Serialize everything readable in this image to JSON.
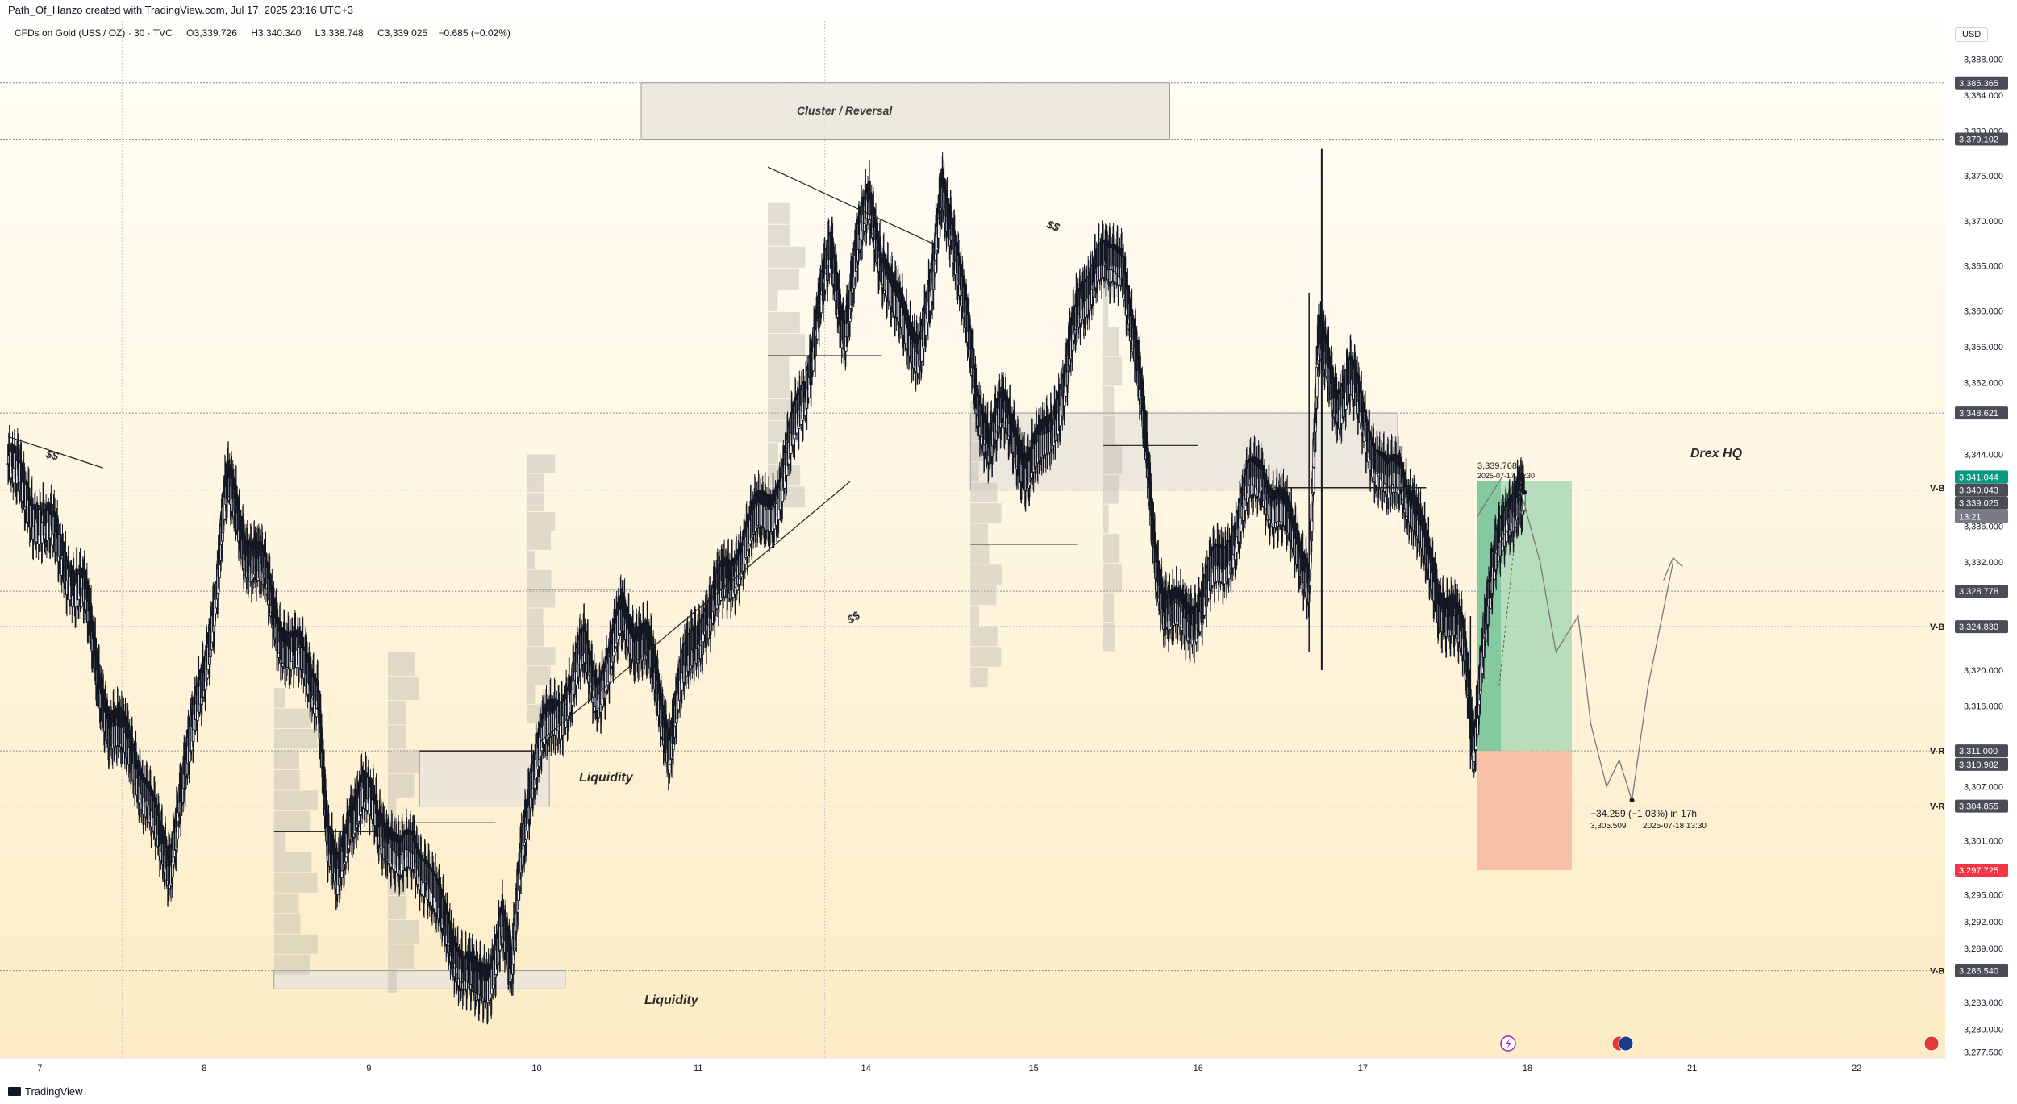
{
  "header": {
    "creator_line": "Path_Of_Hanzo created with TradingView.com, Jul 17, 2025 23:16 UTC+3"
  },
  "legend": {
    "symbol": "CFDs on Gold (US$ / OZ) · 30 · TVC",
    "open_label": "O",
    "open": "3,339.726",
    "high_label": "H",
    "high": "3,340.340",
    "low_label": "L",
    "low": "3,338.748",
    "close_label": "C",
    "close": "3,339.025",
    "change": "−0.685 (−0.02%)"
  },
  "price_axis": {
    "currency": "USD",
    "ticks": [
      "3,388.000",
      "3,384.000",
      "3,380.000",
      "3,375.000",
      "3,370.000",
      "3,365.000",
      "3,360.000",
      "3,356.000",
      "3,352.000",
      "3,344.000",
      "3,336.000",
      "3,332.000",
      "3,320.000",
      "3,316.000",
      "3,307.000",
      "3,301.000",
      "3,295.000",
      "3,292.000",
      "3,289.000",
      "3,283.000",
      "3,280.000",
      "3,277.500"
    ],
    "tick_values": [
      3388,
      3384,
      3380,
      3375,
      3370,
      3365,
      3360,
      3356,
      3352,
      3344,
      3336,
      3332,
      3320,
      3316,
      3307,
      3301,
      3295,
      3292,
      3289,
      3283,
      3280,
      3277.5
    ],
    "tags": [
      {
        "label": "3,385.365",
        "value": 3385.365,
        "color": "#4a4d56"
      },
      {
        "label": "3,379.102",
        "value": 3379.102,
        "color": "#4a4d56"
      },
      {
        "label": "3,348.621",
        "value": 3348.621,
        "color": "#4a4d56"
      },
      {
        "label": "3,341.044",
        "value": 3341.5,
        "color": "#089981"
      },
      {
        "label": "3,340.043",
        "value": 3340.043,
        "color": "#4a4d56"
      },
      {
        "label": "3,339.025",
        "value": 3338.6,
        "color": "#4a4d56"
      },
      {
        "label": "13:21",
        "value": 3337.1,
        "color": "#787b86"
      },
      {
        "label": "3,328.778",
        "value": 3328.778,
        "color": "#4a4d56"
      },
      {
        "label": "3,324.830",
        "value": 3324.83,
        "color": "#4a4d56"
      },
      {
        "label": "3,311.000",
        "value": 3311.0,
        "color": "#4a4d56"
      },
      {
        "label": "3,310.982",
        "value": 3309.5,
        "color": "#4a4d56"
      },
      {
        "label": "3,304.855",
        "value": 3304.855,
        "color": "#4a4d56"
      },
      {
        "label": "3,297.725",
        "value": 3297.725,
        "color": "#f23645"
      },
      {
        "label": "3,286.540",
        "value": 3286.54,
        "color": "#4a4d56"
      }
    ],
    "vlabels": [
      {
        "text": "V-B",
        "value": 3340.3
      },
      {
        "text": "V-B",
        "value": 3324.83
      },
      {
        "text": "V-R",
        "value": 3311.0
      },
      {
        "text": "V-R",
        "value": 3304.855
      },
      {
        "text": "V-B",
        "value": 3286.54
      }
    ]
  },
  "time_axis": {
    "labels": [
      "7",
      "8",
      "9",
      "10",
      "11",
      "14",
      "15",
      "16",
      "17",
      "18",
      "21",
      "22"
    ],
    "positions": [
      0.5,
      3.1,
      5.7,
      8.35,
      10.9,
      13.55,
      16.2,
      18.8,
      21.4,
      24.0,
      26.6,
      29.2
    ]
  },
  "annotations": {
    "cluster_zone": "Cluster / Reversal",
    "drex_zone": "Drex HQ",
    "liquidity_mid": "Liquidity",
    "liquidity_low": "Liquidity",
    "dollars_left": "$$",
    "dollars_top": "$$",
    "dollars_trend": "$$",
    "entry_price": "3,339.768",
    "entry_time": "2025-07-17 20:30",
    "target_change": "−34.259 (−1.03%) in 17h",
    "target_price": "3,305.509",
    "target_time": "2025-07-18  13:30"
  },
  "footer": {
    "brand": "TradingView"
  },
  "colors": {
    "bg_top": "#fffdf6",
    "bg_bottom": "#fdeec8",
    "up": "#131722",
    "profit": "#9fd6b0",
    "profit_dark": "#5cb88a",
    "loss": "#f7b9a0",
    "zone": "#e8e4dc"
  },
  "chart_data": {
    "type": "candlestick",
    "title": "CFDs on Gold (US$ / OZ) · 30 · TVC",
    "x_unit": "trading days (index, 7 Jul = 0.5)",
    "y_range": [
      3276,
      3391
    ],
    "path_points": [
      [
        0.0,
        3343
      ],
      [
        0.3,
        3339
      ],
      [
        0.6,
        3336
      ],
      [
        0.9,
        3332
      ],
      [
        1.2,
        3328
      ],
      [
        1.4,
        3320
      ],
      [
        1.6,
        3314
      ],
      [
        1.8,
        3312
      ],
      [
        2.0,
        3310
      ],
      [
        2.2,
        3306
      ],
      [
        2.4,
        3300
      ],
      [
        2.55,
        3298
      ],
      [
        2.7,
        3306
      ],
      [
        2.9,
        3312
      ],
      [
        3.1,
        3320
      ],
      [
        3.3,
        3330
      ],
      [
        3.45,
        3340
      ],
      [
        3.6,
        3338
      ],
      [
        3.75,
        3334
      ],
      [
        3.9,
        3332
      ],
      [
        4.05,
        3330
      ],
      [
        4.25,
        3325
      ],
      [
        4.45,
        3322
      ],
      [
        4.7,
        3320
      ],
      [
        4.9,
        3318
      ],
      [
        5.05,
        3300
      ],
      [
        5.2,
        3296
      ],
      [
        5.4,
        3304
      ],
      [
        5.6,
        3306
      ],
      [
        5.85,
        3303
      ],
      [
        6.0,
        3302
      ],
      [
        6.2,
        3298
      ],
      [
        6.4,
        3300
      ],
      [
        6.6,
        3298
      ],
      [
        6.8,
        3293
      ],
      [
        7.0,
        3290
      ],
      [
        7.2,
        3287
      ],
      [
        7.4,
        3284
      ],
      [
        7.6,
        3286
      ],
      [
        7.8,
        3292
      ],
      [
        7.95,
        3285
      ],
      [
        8.1,
        3300
      ],
      [
        8.25,
        3308
      ],
      [
        8.45,
        3312
      ],
      [
        8.65,
        3315
      ],
      [
        8.9,
        3318
      ],
      [
        9.1,
        3322
      ],
      [
        9.3,
        3318
      ],
      [
        9.5,
        3320
      ],
      [
        9.7,
        3326
      ],
      [
        9.9,
        3324
      ],
      [
        10.1,
        3322
      ],
      [
        10.3,
        3316
      ],
      [
        10.45,
        3312
      ],
      [
        10.6,
        3318
      ],
      [
        10.8,
        3322
      ],
      [
        11.0,
        3326
      ],
      [
        11.2,
        3328
      ],
      [
        11.4,
        3330
      ],
      [
        11.6,
        3334
      ],
      [
        11.8,
        3336
      ],
      [
        12.0,
        3338
      ],
      [
        12.2,
        3340
      ],
      [
        12.4,
        3346
      ],
      [
        12.6,
        3352
      ],
      [
        12.8,
        3360
      ],
      [
        13.0,
        3366
      ],
      [
        13.2,
        3358
      ],
      [
        13.4,
        3366
      ],
      [
        13.6,
        3372
      ],
      [
        13.8,
        3366
      ],
      [
        14.0,
        3360
      ],
      [
        14.2,
        3358
      ],
      [
        14.4,
        3356
      ],
      [
        14.6,
        3362
      ],
      [
        14.75,
        3374
      ],
      [
        14.9,
        3370
      ],
      [
        15.1,
        3360
      ],
      [
        15.3,
        3350
      ],
      [
        15.5,
        3346
      ],
      [
        15.7,
        3348
      ],
      [
        15.9,
        3346
      ],
      [
        16.1,
        3342
      ],
      [
        16.3,
        3344
      ],
      [
        16.5,
        3348
      ],
      [
        16.7,
        3352
      ],
      [
        16.85,
        3358
      ],
      [
        17.0,
        3362
      ],
      [
        17.2,
        3366
      ],
      [
        17.4,
        3364
      ],
      [
        17.6,
        3366
      ],
      [
        17.8,
        3356
      ],
      [
        17.95,
        3346
      ],
      [
        18.1,
        3334
      ],
      [
        18.25,
        3328
      ],
      [
        18.4,
        3326
      ],
      [
        18.6,
        3325
      ],
      [
        18.8,
        3327
      ],
      [
        19.0,
        3330
      ],
      [
        19.2,
        3332
      ],
      [
        19.4,
        3336
      ],
      [
        19.6,
        3340
      ],
      [
        19.8,
        3342
      ],
      [
        20.0,
        3338
      ],
      [
        20.2,
        3336
      ],
      [
        20.4,
        3334
      ],
      [
        20.55,
        3330
      ],
      [
        20.7,
        3356
      ],
      [
        20.85,
        3354
      ],
      [
        21.0,
        3350
      ],
      [
        21.2,
        3352
      ],
      [
        21.4,
        3348
      ],
      [
        21.6,
        3344
      ],
      [
        21.8,
        3340
      ],
      [
        22.0,
        3342
      ],
      [
        22.2,
        3338
      ],
      [
        22.4,
        3332
      ],
      [
        22.6,
        3328
      ],
      [
        22.8,
        3326
      ],
      [
        23.0,
        3322
      ],
      [
        23.15,
        3312
      ],
      [
        23.3,
        3324
      ],
      [
        23.5,
        3332
      ],
      [
        23.7,
        3338
      ],
      [
        23.85,
        3340
      ],
      [
        23.95,
        3339.02
      ]
    ],
    "profit_zone": {
      "x0": 23.2,
      "x1": 24.7,
      "top": 3341.04,
      "bottom": 3311.0
    },
    "loss_zone": {
      "x0": 23.2,
      "x1": 24.7,
      "top": 3311.0,
      "bottom": 3297.725
    },
    "projection": [
      [
        23.9,
        3339.77
      ],
      [
        24.2,
        3332
      ],
      [
        24.45,
        3322
      ],
      [
        24.8,
        3326
      ],
      [
        25.0,
        3314
      ],
      [
        25.25,
        3307
      ],
      [
        25.45,
        3310
      ],
      [
        25.65,
        3305.5
      ],
      [
        25.9,
        3318
      ],
      [
        26.3,
        3332
      ]
    ],
    "zones": [
      {
        "name": "Cluster / Reversal",
        "x0": 10.0,
        "x1": 18.35,
        "top": 3385.365,
        "bottom": 3379.102
      },
      {
        "name": "Drex HQ",
        "x0": 15.2,
        "x1": 21.95,
        "top": 3348.621,
        "bottom": 3340.043
      },
      {
        "name": "Liquidity",
        "x0": 6.5,
        "x1": 8.55,
        "top": 3311.0,
        "bottom": 3304.855
      },
      {
        "name": "Liquidity",
        "x0": 4.2,
        "x1": 8.8,
        "top": 3286.54,
        "bottom": 3284.5
      }
    ],
    "hlines": [
      3385.365,
      3379.102,
      3348.621,
      3340.043,
      3328.778,
      3324.83,
      3311.0,
      3304.855,
      3286.54
    ],
    "trend_lines": [
      {
        "from": [
          0.0,
          3346
        ],
        "to": [
          1.5,
          3342.5
        ]
      },
      {
        "from": [
          12.0,
          3376
        ],
        "to": [
          14.6,
          3367.5
        ]
      },
      {
        "from": [
          8.4,
          3312
        ],
        "to": [
          13.3,
          3341
        ]
      }
    ]
  }
}
